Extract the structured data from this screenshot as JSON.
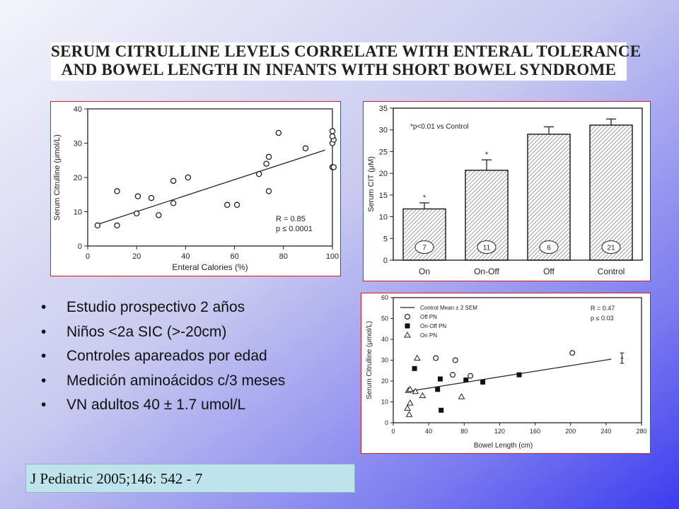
{
  "title": {
    "line1": "SERUM CITRULLINE LEVELS CORRELATE WITH ENTERAL TOLERANCE",
    "line2": "AND BOWEL LENGTH IN INFANTS WITH SHORT BOWEL SYNDROME"
  },
  "bullets": [
    "Estudio prospectivo 2 años",
    "Niños <2a SIC (>-20cm)",
    "Controles apareados por edad",
    "Medición aminoácidos c/3 meses",
    "VN adultos 40 ± 1.7 umol/L"
  ],
  "citation": "J Pediatric 2005;146: 542 - 7",
  "chart_data": [
    {
      "type": "scatter",
      "xlabel": "Enteral Calories (%)",
      "ylabel": "Serum Citrulline (μmol/L)",
      "xlim": [
        0,
        100
      ],
      "ylim": [
        0,
        40
      ],
      "xticks": [
        "0",
        "20",
        "40",
        "60",
        "80",
        "100"
      ],
      "yticks": [
        "0",
        "10",
        "20",
        "30",
        "40"
      ],
      "grid": false,
      "annotations": [
        "R = 0.85",
        "p ≤ 0.0001"
      ],
      "points": [
        [
          4,
          6
        ],
        [
          12,
          6
        ],
        [
          12,
          16
        ],
        [
          20,
          9.5
        ],
        [
          20.5,
          14.5
        ],
        [
          26,
          14
        ],
        [
          29,
          9
        ],
        [
          35,
          12.5
        ],
        [
          35,
          19
        ],
        [
          41,
          20
        ],
        [
          57,
          12
        ],
        [
          61,
          12
        ],
        [
          70,
          21
        ],
        [
          73,
          24
        ],
        [
          74,
          16
        ],
        [
          74,
          26
        ],
        [
          78,
          33
        ],
        [
          89,
          28.5
        ],
        [
          100,
          23
        ],
        [
          100.5,
          23
        ],
        [
          100,
          30
        ],
        [
          100.5,
          31
        ],
        [
          100,
          32
        ],
        [
          100,
          33.5
        ]
      ],
      "fit": [
        [
          4,
          6.3
        ],
        [
          97,
          28
        ]
      ]
    },
    {
      "type": "bar",
      "categories": [
        "On",
        "On-Off",
        "Off",
        "Control"
      ],
      "values": [
        11.8,
        20.7,
        29,
        31.1
      ],
      "errors": [
        1.4,
        2.4,
        1.7,
        1.4
      ],
      "counts": [
        "7",
        "11",
        "6",
        "21"
      ],
      "significance": [
        "*",
        "*",
        "",
        ""
      ],
      "annotation": "*p<0.01 vs Control",
      "ylabel": "Serum CIT (μM)",
      "ylim": [
        0,
        35
      ],
      "yticks": [
        "0",
        "5",
        "10",
        "15",
        "20",
        "25",
        "30",
        "35"
      ]
    },
    {
      "type": "scatter",
      "xlabel": "Bowel Length (cm)",
      "ylabel": "Serum Citrulline (μmol/L)",
      "xlim": [
        0,
        280
      ],
      "ylim": [
        0,
        60
      ],
      "xticks": [
        "0",
        "40",
        "80",
        "120",
        "160",
        "200",
        "240",
        "280"
      ],
      "yticks": [
        "0",
        "10",
        "20",
        "30",
        "40",
        "50",
        "60"
      ],
      "annotations": [
        "R = 0.47",
        "p ≤ 0.03"
      ],
      "legend_position": "top-left",
      "series": [
        {
          "name": "Control Mean ± 2 SEM",
          "marker": "errorbar",
          "points": [
            [
              258,
              31
            ]
          ],
          "error": 2.5
        },
        {
          "name": "Off PN",
          "marker": "circle",
          "points": [
            [
              48,
              31
            ],
            [
              70,
              30
            ],
            [
              67,
              23
            ],
            [
              87,
              22.5
            ],
            [
              202,
              33.5
            ]
          ]
        },
        {
          "name": "On-Off PN",
          "marker": "square",
          "points": [
            [
              24,
              26
            ],
            [
              50,
              16
            ],
            [
              53,
              21
            ],
            [
              54,
              6
            ],
            [
              82,
              20.5
            ],
            [
              101,
              19.5
            ],
            [
              142,
              23
            ]
          ]
        },
        {
          "name": "On PN",
          "marker": "triangle",
          "points": [
            [
              17,
              15.5
            ],
            [
              19,
              16
            ],
            [
              16,
              7
            ],
            [
              19,
              9.5
            ],
            [
              18,
              4
            ],
            [
              25,
              15
            ],
            [
              27,
              31
            ],
            [
              33,
              13
            ],
            [
              77,
              12.5
            ]
          ]
        }
      ],
      "fit": [
        [
          16,
          15
        ],
        [
          246,
          30.5
        ]
      ]
    }
  ]
}
